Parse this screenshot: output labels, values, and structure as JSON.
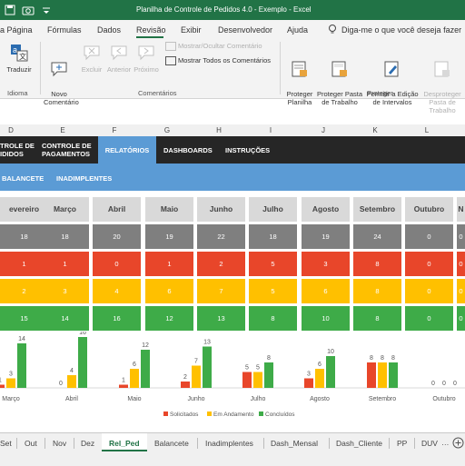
{
  "window": {
    "title": "Planilha de Controle de Pedidos 4.0 - Exemplo  -  Excel"
  },
  "menu": {
    "items": [
      "a Página",
      "Fórmulas",
      "Dados",
      "Revisão",
      "Exibir",
      "Desenvolvedor",
      "Ajuda"
    ],
    "active": "Revisão",
    "search_placeholder": "Diga-me o que você deseja fazer"
  },
  "ribbon": {
    "traduzir": "Traduzir",
    "novo_comentario": "Novo\nComentário",
    "excluir": "Excluir",
    "anterior": "Anterior",
    "proximo": "Próximo",
    "mostrar_ocultar": "Mostrar/Ocultar Comentário",
    "mostrar_todos": "Mostrar Todos os Comentários",
    "proteger_planilha": "Proteger\nPlanilha",
    "proteger_pasta": "Proteger Pasta\nde Trabalho",
    "permitir_edicao": "Permitir a Edição\nde Intervalos",
    "desproteger": "Desproteger\nPasta de Trabalho",
    "groups": {
      "idioma": "Idioma",
      "comentarios": "Comentários",
      "proteger": "Proteger"
    }
  },
  "columns": [
    "D",
    "E",
    "F",
    "G",
    "H",
    "I",
    "J",
    "K",
    "L"
  ],
  "nav": {
    "tab1": "TROLE DE\nIDIDOS",
    "tab2": "CONTROLE DE\nPAGAMENTOS",
    "tab3": "RELATÓRIOS",
    "tab4": "DASHBOARDS",
    "tab5": "INSTRUÇÕES",
    "sub1": "BALANCETE",
    "sub2": "INADIMPLENTES"
  },
  "table": {
    "months": [
      "evereiro",
      "Março",
      "Abril",
      "Maio",
      "Junho",
      "Julho",
      "Agosto",
      "Setembro",
      "Outubro",
      "N"
    ],
    "rows": [
      {
        "color": "#7f7f7f",
        "values": [
          "18",
          "18",
          "20",
          "19",
          "22",
          "18",
          "19",
          "24",
          "0",
          "0"
        ]
      },
      {
        "color": "#e8462a",
        "values": [
          "1",
          "1",
          "0",
          "1",
          "2",
          "5",
          "3",
          "8",
          "0",
          "0"
        ]
      },
      {
        "color": "#ffc000",
        "values": [
          "2",
          "3",
          "4",
          "6",
          "7",
          "5",
          "6",
          "8",
          "0",
          "0"
        ]
      },
      {
        "color": "#3eab48",
        "values": [
          "15",
          "14",
          "16",
          "12",
          "13",
          "8",
          "10",
          "8",
          "0",
          "0"
        ]
      }
    ]
  },
  "chart_data": {
    "type": "bar",
    "categories": [
      "Março",
      "Abril",
      "Maio",
      "Junho",
      "Julho",
      "Agosto",
      "Setembro",
      "Outubro"
    ],
    "series": [
      {
        "name": "Solicitados",
        "color": "#e8462a",
        "values": [
          1,
          0,
          1,
          2,
          5,
          3,
          8,
          0
        ]
      },
      {
        "name": "Em Andamento",
        "color": "#ffc000",
        "values": [
          3,
          4,
          6,
          7,
          5,
          6,
          8,
          0
        ]
      },
      {
        "name": "Concluídos",
        "color": "#3eab48",
        "values": [
          14,
          16,
          12,
          13,
          8,
          10,
          8,
          0
        ]
      }
    ],
    "ylim": [
      0,
      16
    ],
    "legend": "bottom"
  },
  "sheets": {
    "tabs": [
      "Set",
      "Out",
      "Nov",
      "Dez",
      "Rel_Ped",
      "Balancete",
      "Inadimplentes",
      "Dash_Mensal",
      "Dash_Cliente",
      "PP",
      "DUV"
    ],
    "active": "Rel_Ped"
  }
}
